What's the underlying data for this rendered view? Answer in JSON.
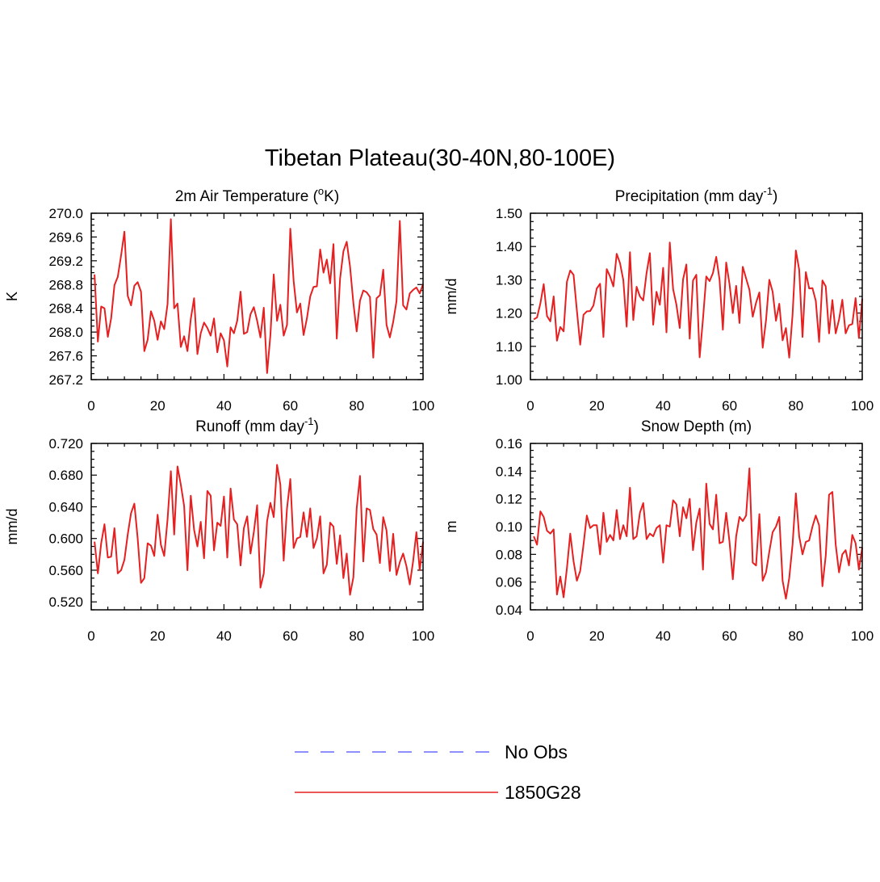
{
  "figure": {
    "title": "Tibetan Plateau(30-40N,80-100E)",
    "legend": [
      {
        "label": "No Obs",
        "color": "#6a6aff",
        "dash": true
      },
      {
        "label": "1850G28",
        "color": "#e62020",
        "dash": false
      }
    ]
  },
  "chart_data": [
    {
      "type": "line",
      "title": "2m Air Temperature (",
      "title_sup": "o",
      "title_after": "K)",
      "ylabel": "K",
      "xlim": [
        0,
        100
      ],
      "ylim": [
        267.2,
        270.0
      ],
      "xticks": [
        0,
        20,
        40,
        60,
        80,
        100
      ],
      "yticks": [
        267.2,
        267.6,
        268.0,
        268.4,
        268.8,
        269.2,
        269.6,
        270.0
      ],
      "ytick_labels": [
        "267.2",
        "267.6",
        "268.0",
        "268.4",
        "268.8",
        "269.2",
        "269.6",
        "270.0"
      ],
      "series": [
        {
          "name": "1850G28",
          "color": "#e62020",
          "x_start": 1,
          "values": [
            268.97,
            267.84,
            268.43,
            268.4,
            267.92,
            268.23,
            268.79,
            268.93,
            269.29,
            269.69,
            268.61,
            268.45,
            268.78,
            268.84,
            268.68,
            267.68,
            267.87,
            268.35,
            268.19,
            267.87,
            268.18,
            268.05,
            268.47,
            269.9,
            268.4,
            268.48,
            267.75,
            267.93,
            267.68,
            268.22,
            268.57,
            267.63,
            267.98,
            268.16,
            268.07,
            267.94,
            268.23,
            267.66,
            267.98,
            267.86,
            267.42,
            268.08,
            267.98,
            268.19,
            268.68,
            267.97,
            268.0,
            268.3,
            268.42,
            268.19,
            267.91,
            268.41,
            267.31,
            267.95,
            268.97,
            268.19,
            268.46,
            267.94,
            268.12,
            269.74,
            268.86,
            268.33,
            268.48,
            267.95,
            268.23,
            268.6,
            268.76,
            268.77,
            269.39,
            269.0,
            269.22,
            268.82,
            269.48,
            267.89,
            268.9,
            269.36,
            269.52,
            269.1,
            268.49,
            268.01,
            268.53,
            268.7,
            268.67,
            268.59,
            267.57,
            268.57,
            268.62,
            269.05,
            268.12,
            267.91,
            268.17,
            268.52,
            269.87,
            268.45,
            268.38,
            268.65,
            268.71,
            268.75,
            268.65,
            268.81
          ]
        }
      ]
    },
    {
      "type": "line",
      "title": "Precipitation (mm day",
      "title_sup": "-1",
      "title_after": ")",
      "ylabel": "mm/d",
      "xlim": [
        0,
        100
      ],
      "ylim": [
        1.0,
        1.5
      ],
      "xticks": [
        0,
        20,
        40,
        60,
        80,
        100
      ],
      "yticks": [
        1.0,
        1.1,
        1.2,
        1.3,
        1.4,
        1.5
      ],
      "ytick_labels": [
        "1.00",
        "1.10",
        "1.20",
        "1.30",
        "1.40",
        "1.50"
      ],
      "series": [
        {
          "name": "1850G28",
          "color": "#e62020",
          "x_start": 1,
          "values": [
            1.181,
            1.187,
            1.229,
            1.287,
            1.191,
            1.175,
            1.25,
            1.117,
            1.158,
            1.145,
            1.294,
            1.328,
            1.315,
            1.208,
            1.105,
            1.195,
            1.205,
            1.206,
            1.223,
            1.274,
            1.288,
            1.128,
            1.332,
            1.31,
            1.28,
            1.378,
            1.35,
            1.299,
            1.159,
            1.383,
            1.179,
            1.279,
            1.25,
            1.238,
            1.32,
            1.38,
            1.165,
            1.264,
            1.225,
            1.336,
            1.142,
            1.412,
            1.272,
            1.225,
            1.155,
            1.301,
            1.346,
            1.123,
            1.298,
            1.315,
            1.067,
            1.182,
            1.31,
            1.296,
            1.32,
            1.369,
            1.3,
            1.15,
            1.352,
            1.287,
            1.2,
            1.282,
            1.17,
            1.339,
            1.304,
            1.27,
            1.189,
            1.231,
            1.262,
            1.096,
            1.178,
            1.3,
            1.264,
            1.177,
            1.228,
            1.118,
            1.155,
            1.066,
            1.195,
            1.388,
            1.33,
            1.128,
            1.323,
            1.274,
            1.275,
            1.237,
            1.113,
            1.298,
            1.28,
            1.139,
            1.239,
            1.139,
            1.18,
            1.24,
            1.139,
            1.163,
            1.167,
            1.245,
            1.125,
            1.243
          ]
        }
      ]
    },
    {
      "type": "line",
      "title": "Runoff (mm day",
      "title_sup": "-1",
      "title_after": ")",
      "ylabel": "mm/d",
      "xlim": [
        0,
        100
      ],
      "ylim": [
        0.51,
        0.72
      ],
      "xticks": [
        0,
        20,
        40,
        60,
        80,
        100
      ],
      "yticks": [
        0.52,
        0.56,
        0.6,
        0.64,
        0.68,
        0.72
      ],
      "ytick_labels": [
        "0.520",
        "0.560",
        "0.600",
        "0.640",
        "0.680",
        "0.720"
      ],
      "series": [
        {
          "name": "1850G28",
          "color": "#e62020",
          "x_start": 1,
          "values": [
            0.596,
            0.556,
            0.594,
            0.618,
            0.576,
            0.577,
            0.613,
            0.556,
            0.56,
            0.573,
            0.605,
            0.632,
            0.644,
            0.6,
            0.544,
            0.55,
            0.594,
            0.591,
            0.578,
            0.63,
            0.592,
            0.578,
            0.624,
            0.685,
            0.605,
            0.691,
            0.668,
            0.641,
            0.56,
            0.654,
            0.611,
            0.59,
            0.621,
            0.575,
            0.66,
            0.654,
            0.585,
            0.62,
            0.616,
            0.653,
            0.576,
            0.663,
            0.624,
            0.618,
            0.566,
            0.613,
            0.628,
            0.581,
            0.608,
            0.642,
            0.538,
            0.556,
            0.622,
            0.645,
            0.627,
            0.693,
            0.668,
            0.572,
            0.638,
            0.675,
            0.588,
            0.6,
            0.602,
            0.633,
            0.602,
            0.638,
            0.588,
            0.6,
            0.628,
            0.556,
            0.567,
            0.62,
            0.615,
            0.568,
            0.604,
            0.55,
            0.581,
            0.529,
            0.551,
            0.638,
            0.679,
            0.571,
            0.638,
            0.636,
            0.612,
            0.605,
            0.569,
            0.627,
            0.61,
            0.559,
            0.606,
            0.554,
            0.57,
            0.581,
            0.565,
            0.542,
            0.571,
            0.608,
            0.56,
            0.596
          ]
        }
      ]
    },
    {
      "type": "line",
      "title": "Snow Depth (m)",
      "title_sup": "",
      "title_after": "",
      "ylabel": "m",
      "xlim": [
        0,
        100
      ],
      "ylim": [
        0.04,
        0.16
      ],
      "xticks": [
        0,
        20,
        40,
        60,
        80,
        100
      ],
      "yticks": [
        0.04,
        0.06,
        0.08,
        0.1,
        0.12,
        0.14,
        0.16
      ],
      "ytick_labels": [
        "0.04",
        "0.06",
        "0.08",
        "0.10",
        "0.12",
        "0.14",
        "0.16"
      ],
      "series": [
        {
          "name": "1850G28",
          "color": "#e62020",
          "x_start": 1,
          "values": [
            0.093,
            0.087,
            0.111,
            0.107,
            0.097,
            0.095,
            0.098,
            0.051,
            0.064,
            0.049,
            0.07,
            0.095,
            0.075,
            0.061,
            0.068,
            0.087,
            0.108,
            0.099,
            0.101,
            0.101,
            0.08,
            0.11,
            0.089,
            0.094,
            0.09,
            0.112,
            0.091,
            0.101,
            0.093,
            0.128,
            0.091,
            0.093,
            0.11,
            0.117,
            0.091,
            0.095,
            0.093,
            0.099,
            0.101,
            0.074,
            0.101,
            0.1,
            0.119,
            0.116,
            0.093,
            0.114,
            0.106,
            0.12,
            0.083,
            0.103,
            0.113,
            0.069,
            0.131,
            0.102,
            0.098,
            0.123,
            0.088,
            0.089,
            0.11,
            0.089,
            0.062,
            0.093,
            0.107,
            0.104,
            0.108,
            0.142,
            0.074,
            0.072,
            0.109,
            0.061,
            0.067,
            0.082,
            0.096,
            0.1,
            0.107,
            0.061,
            0.048,
            0.063,
            0.087,
            0.124,
            0.093,
            0.08,
            0.089,
            0.09,
            0.1,
            0.108,
            0.101,
            0.057,
            0.079,
            0.123,
            0.125,
            0.087,
            0.067,
            0.08,
            0.083,
            0.072,
            0.094,
            0.088,
            0.069,
            0.085
          ]
        }
      ]
    }
  ]
}
